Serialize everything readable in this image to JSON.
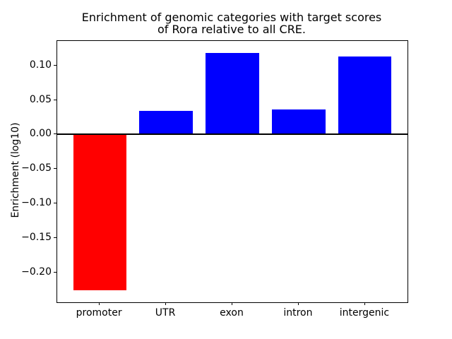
{
  "chart_data": {
    "type": "bar",
    "title": "Enrichment of genomic categories with target scores\nof Rora relative to all CRE.",
    "title_lines": [
      "Enrichment of genomic categories with target scores",
      "of Rora relative to all CRE."
    ],
    "xlabel": "",
    "ylabel": "Enrichment (log10)",
    "categories": [
      "promoter",
      "UTR",
      "exon",
      "intron",
      "intergenic"
    ],
    "values": [
      -0.225,
      0.034,
      0.118,
      0.036,
      0.113
    ],
    "bar_colors": [
      "#ff0000",
      "#0000ff",
      "#0000ff",
      "#0000ff",
      "#0000ff"
    ],
    "bar_width": 0.8,
    "yticks": [
      0.1,
      0.05,
      0.0,
      -0.05,
      -0.1,
      -0.15,
      -0.2
    ],
    "ytick_labels": [
      "0.10",
      "0.05",
      "0.00",
      "−0.05",
      "−0.10",
      "−0.15",
      "−0.20"
    ],
    "ylim": [
      -0.2427,
      0.1354
    ],
    "xlim": [
      -0.64,
      4.64
    ],
    "grid": false,
    "legend": null,
    "zero_line": true,
    "axis_color": "#000000",
    "negative_color": "#ff0000",
    "positive_color": "#0000ff",
    "background_color": "#ffffff"
  }
}
